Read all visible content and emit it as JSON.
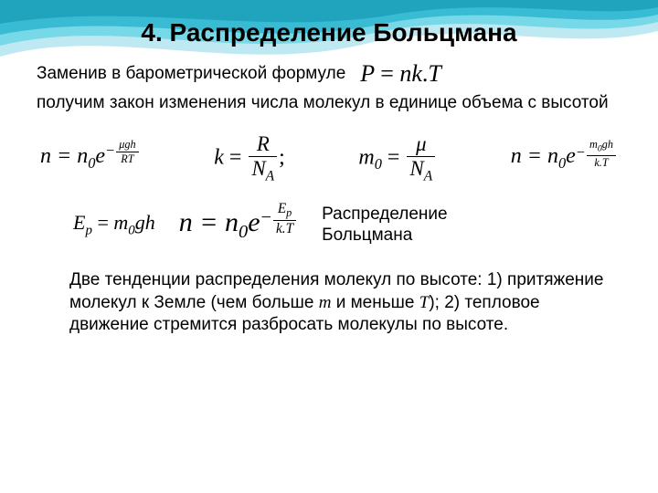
{
  "colors": {
    "wave_light": "#bfe9f2",
    "wave_mid": "#6fd6e6",
    "wave_dark": "#2db6cf",
    "wave_deep": "#1a9fb8",
    "background": "#ffffff",
    "text": "#000000"
  },
  "title": "4. Распределение Больцмана",
  "line1": "Заменив в барометрической формуле",
  "line2": "получим закон изменения числа молекул в единице объема с высотой",
  "boltzmann_label_1": "Распределение",
  "boltzmann_label_2": "Больцмана",
  "footer_html": "Две тенденции распределения молекул по высоте: 1) притяжение молекул к Земле (чем больше <span class=\"it\">m</span> и меньше <span class=\"it\">T</span>); 2) тепловое движение стремится разбросать молекулы по высоте.",
  "formulas": {
    "P_nkT": {
      "text": "P = nk.T",
      "fontsize": 24
    },
    "n_n0_mu": {
      "base": "n = n",
      "sub0": "0",
      "exp_neg": "−",
      "exp_num": "μgh",
      "exp_den": "RT"
    },
    "k_R_NA": {
      "lhs": "k",
      "num": "R",
      "den_N": "N",
      "den_A": "A"
    },
    "m0_mu_NA": {
      "lhs_m": "m",
      "lhs_0": "0",
      "num": "μ",
      "den_N": "N",
      "den_A": "A"
    },
    "n_n0_m0": {
      "base": "n = n",
      "sub0": "0",
      "exp_neg": "−",
      "exp_num_m": "m",
      "exp_num_0": "0",
      "exp_num_rest": "gh",
      "exp_den": "k.T"
    },
    "Ep_m0gh": {
      "lhs_E": "E",
      "lhs_p": "p",
      "eq": " = ",
      "m": "m",
      "m0": "0",
      "rest": "gh"
    },
    "n_n0_Ep": {
      "base": "n = n",
      "sub0": "0",
      "exp_neg": "−",
      "exp_num_E": "E",
      "exp_num_p": "p",
      "exp_den": "k.T"
    }
  }
}
